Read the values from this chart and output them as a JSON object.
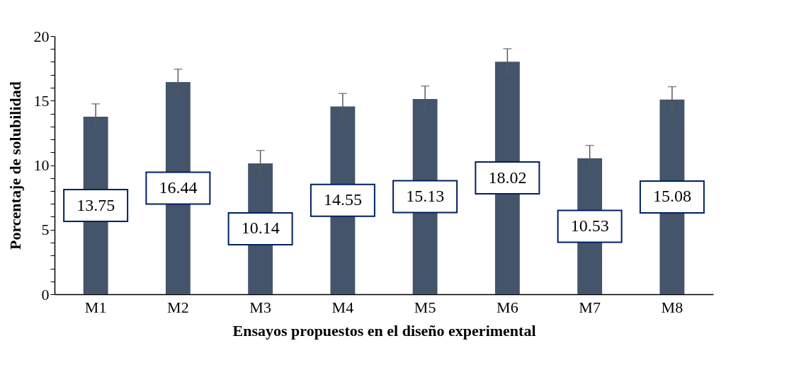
{
  "chart_data": {
    "type": "bar",
    "xlabel": "Ensayos propuestos en el diseño experimental",
    "ylabel": "Porcentaje de solubilidad",
    "categories": [
      "M1",
      "M2",
      "M3",
      "M4",
      "M5",
      "M6",
      "M7",
      "M8"
    ],
    "values": [
      13.75,
      16.44,
      10.14,
      14.55,
      15.13,
      18.02,
      10.53,
      15.08
    ],
    "errors": [
      1,
      1,
      1,
      1,
      1,
      1,
      1,
      1
    ],
    "color": "#44546a",
    "data_labels": true,
    "grid": false,
    "ylim": [
      0,
      20
    ],
    "yticks": [
      0,
      {
        "value": 1,
        "label": null
      },
      {
        "value": 2,
        "label": null
      },
      {
        "value": 3,
        "label": null
      },
      {
        "value": 4,
        "label": null
      },
      5,
      {
        "value": 6,
        "label": null
      },
      {
        "value": 7,
        "label": null
      },
      {
        "value": 8,
        "label": null
      },
      {
        "value": 9,
        "label": null
      },
      10,
      {
        "value": 11,
        "label": null
      },
      {
        "value": 12,
        "label": null
      },
      {
        "value": 13,
        "label": null
      },
      {
        "value": 14,
        "label": null
      },
      15,
      {
        "value": 16,
        "label": null
      },
      {
        "value": 17,
        "label": null
      },
      {
        "value": 18,
        "label": null
      },
      {
        "value": 19,
        "label": null
      },
      20
    ]
  }
}
